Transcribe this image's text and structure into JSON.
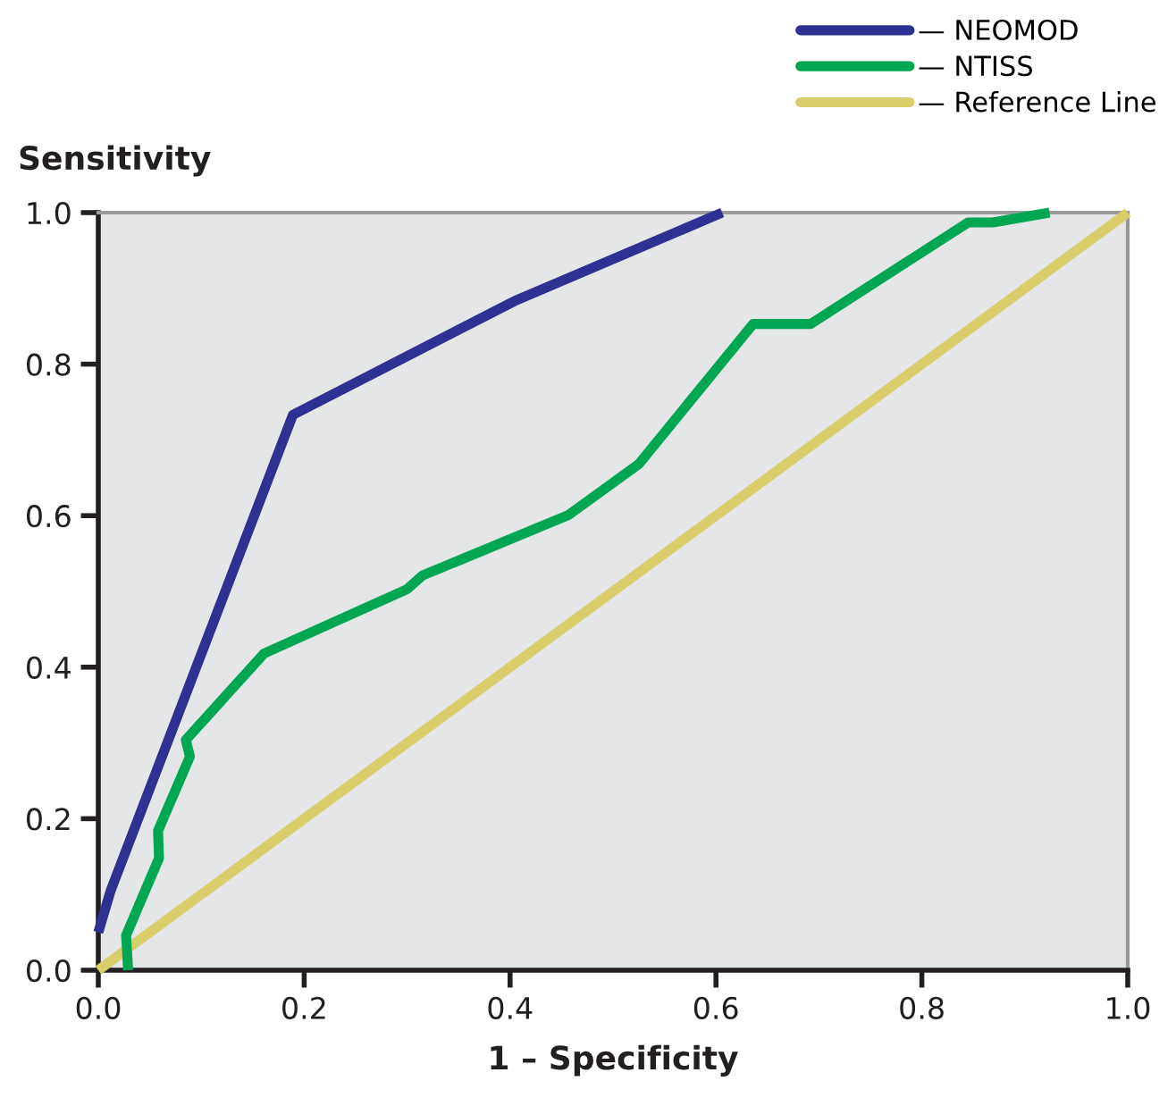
{
  "chart_data": {
    "type": "line",
    "xlabel": "1 – Specificity",
    "ylabel": "Sensitivity",
    "series": [
      {
        "name": "— NEOMOD",
        "color": "#2e3192",
        "x": [
          0,
          0.012,
          0.189,
          0.404,
          0.606
        ],
        "values": [
          0.05,
          0.105,
          0.733,
          0.883,
          1.0
        ]
      },
      {
        "name": "— NTISS",
        "color": "#00a651",
        "x": [
          0.029,
          0.027,
          0.059,
          0.058,
          0.089,
          0.085,
          0.161,
          0.3,
          0.315,
          0.457,
          0.525,
          0.636,
          0.692,
          0.845,
          0.869,
          0.924
        ],
        "values": [
          0,
          0.046,
          0.148,
          0.184,
          0.282,
          0.304,
          0.418,
          0.503,
          0.521,
          0.601,
          0.668,
          0.853,
          0.853,
          0.987,
          0.987,
          1.0
        ]
      },
      {
        "name": "— Reference Line",
        "color": "#d9cd6c",
        "x": [
          0,
          1
        ],
        "values": [
          0,
          1
        ]
      }
    ],
    "xlim": [
      0,
      1
    ],
    "ylim": [
      0,
      1
    ],
    "xticks": [
      {
        "value": 0,
        "label": "0.0"
      },
      0.2,
      0.4,
      0.6,
      0.8,
      {
        "value": 1,
        "label": "1.0"
      }
    ],
    "yticks": [
      {
        "value": 0,
        "label": "0.0"
      },
      0.2,
      0.4,
      0.6,
      0.8,
      {
        "value": 1,
        "label": "1.0"
      }
    ],
    "grid": false,
    "legend": "top right",
    "marker": "none",
    "line_style": "solid"
  }
}
